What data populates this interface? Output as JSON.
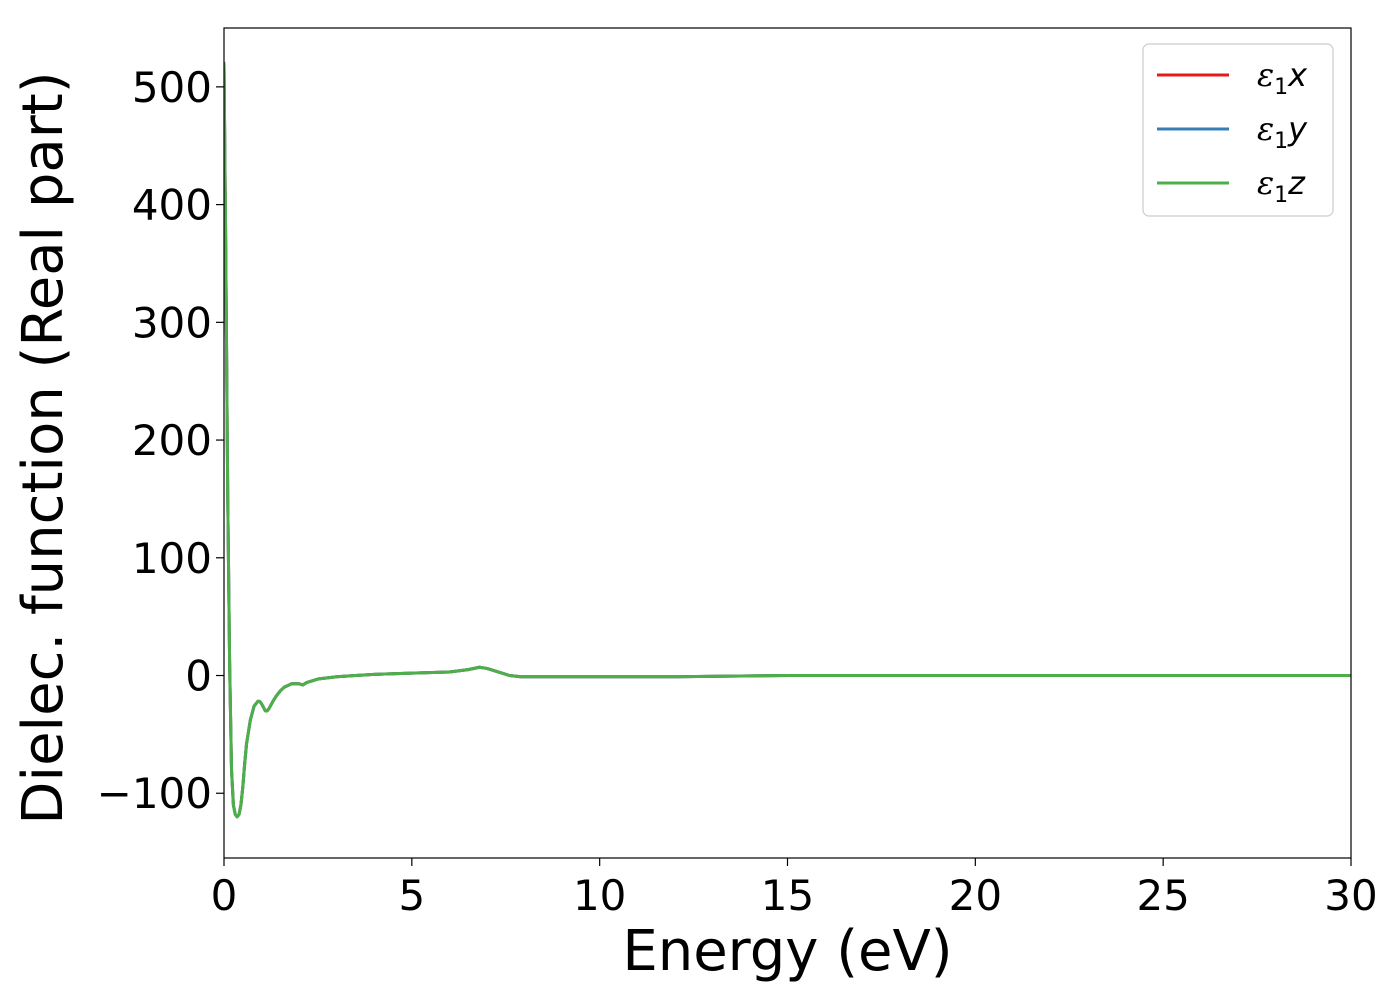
{
  "chart_data": {
    "type": "line",
    "title": "",
    "xlabel": "Energy (eV)",
    "ylabel": "Dielec. function (Real part)",
    "xlim": [
      0,
      30
    ],
    "ylim": [
      -155,
      550
    ],
    "xticks": [
      0,
      5,
      10,
      15,
      20,
      25,
      30
    ],
    "xtick_labels": [
      "0",
      "5",
      "10",
      "15",
      "20",
      "25",
      "30"
    ],
    "yticks": [
      -100,
      0,
      100,
      200,
      300,
      400,
      500
    ],
    "ytick_labels": [
      "−100",
      "0",
      "100",
      "200",
      "300",
      "400",
      "500"
    ],
    "grid": false,
    "legend_position": "top-right",
    "series": [
      {
        "name": "ε1x",
        "legend": {
          "symbol": "ε",
          "subscript": "1",
          "var": "x"
        },
        "color": "#e41a1c",
        "x": [
          0.0,
          0.05,
          0.1,
          0.15,
          0.2,
          0.25,
          0.3,
          0.35,
          0.4,
          0.45,
          0.5,
          0.55,
          0.6,
          0.7,
          0.8,
          0.9,
          0.95,
          1.0,
          1.1,
          1.15,
          1.2,
          1.3,
          1.4,
          1.5,
          1.6,
          1.8,
          2.0,
          2.1,
          2.2,
          2.5,
          3.0,
          3.5,
          4.0,
          5.0,
          6.0,
          6.5,
          6.8,
          7.0,
          7.3,
          7.6,
          7.9,
          8.2,
          9.0,
          10.0,
          12.0,
          15.0,
          20.0,
          25.0,
          30.0
        ],
        "y": [
          520,
          350,
          150,
          10,
          -80,
          -110,
          -118,
          -120,
          -118,
          -110,
          -95,
          -75,
          -58,
          -38,
          -26,
          -22,
          -22,
          -24,
          -30,
          -30,
          -28,
          -22,
          -17,
          -13,
          -10,
          -7,
          -7,
          -8,
          -6,
          -3,
          -1,
          0,
          1,
          2,
          3,
          5,
          7,
          6,
          3,
          0,
          -1,
          -1,
          -1,
          -1,
          -1,
          0,
          0,
          0,
          0
        ]
      },
      {
        "name": "ε1y",
        "legend": {
          "symbol": "ε",
          "subscript": "1",
          "var": "y"
        },
        "color": "#377eb8",
        "x": [
          0.0,
          0.05,
          0.1,
          0.15,
          0.2,
          0.25,
          0.3,
          0.35,
          0.4,
          0.45,
          0.5,
          0.55,
          0.6,
          0.7,
          0.8,
          0.9,
          0.95,
          1.0,
          1.1,
          1.15,
          1.2,
          1.3,
          1.4,
          1.5,
          1.6,
          1.8,
          2.0,
          2.1,
          2.2,
          2.5,
          3.0,
          3.5,
          4.0,
          5.0,
          6.0,
          6.5,
          6.8,
          7.0,
          7.3,
          7.6,
          7.9,
          8.2,
          9.0,
          10.0,
          12.0,
          15.0,
          20.0,
          25.0,
          30.0
        ],
        "y": [
          520,
          350,
          150,
          10,
          -80,
          -110,
          -118,
          -120,
          -118,
          -110,
          -95,
          -75,
          -58,
          -38,
          -26,
          -22,
          -22,
          -24,
          -30,
          -30,
          -28,
          -22,
          -17,
          -13,
          -10,
          -7,
          -7,
          -8,
          -6,
          -3,
          -1,
          0,
          1,
          2,
          3,
          5,
          7,
          6,
          3,
          0,
          -1,
          -1,
          -1,
          -1,
          -1,
          0,
          0,
          0,
          0
        ]
      },
      {
        "name": "ε1z",
        "legend": {
          "symbol": "ε",
          "subscript": "1",
          "var": "z"
        },
        "color": "#4daf4a",
        "x": [
          0.0,
          0.05,
          0.1,
          0.15,
          0.2,
          0.25,
          0.3,
          0.35,
          0.4,
          0.45,
          0.5,
          0.55,
          0.6,
          0.7,
          0.8,
          0.9,
          0.95,
          1.0,
          1.1,
          1.15,
          1.2,
          1.3,
          1.4,
          1.5,
          1.6,
          1.8,
          2.0,
          2.1,
          2.2,
          2.5,
          3.0,
          3.5,
          4.0,
          5.0,
          6.0,
          6.5,
          6.8,
          7.0,
          7.3,
          7.6,
          7.9,
          8.2,
          9.0,
          10.0,
          12.0,
          15.0,
          20.0,
          25.0,
          30.0
        ],
        "y": [
          520,
          350,
          150,
          10,
          -80,
          -110,
          -118,
          -120,
          -118,
          -110,
          -95,
          -75,
          -58,
          -38,
          -26,
          -22,
          -22,
          -24,
          -30,
          -30,
          -28,
          -22,
          -17,
          -13,
          -10,
          -7,
          -7,
          -8,
          -6,
          -3,
          -1,
          0,
          1,
          2,
          3,
          5,
          7,
          6,
          3,
          0,
          -1,
          -1,
          -1,
          -1,
          -1,
          0,
          0,
          0,
          0
        ]
      }
    ]
  }
}
